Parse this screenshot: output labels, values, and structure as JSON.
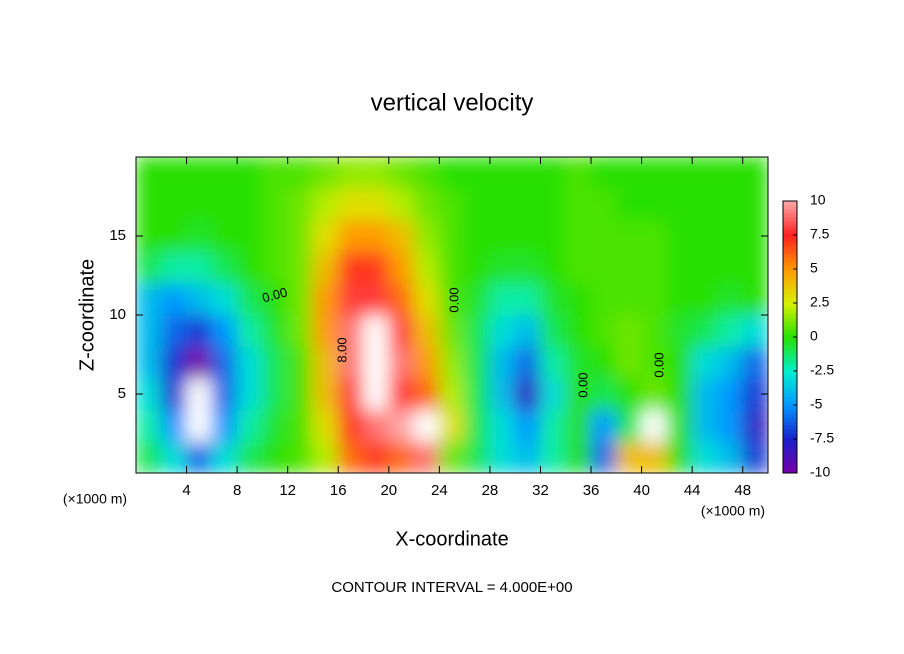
{
  "chart_data": {
    "type": "contour",
    "title": "vertical velocity",
    "xlabel": "X-coordinate",
    "ylabel": "Z-coordinate",
    "x_unit": "(×1000 m)",
    "y_unit": "(×1000 m)",
    "note": "CONTOUR INTERVAL = 4.000E+00",
    "annotations": [
      "0.00",
      "0.00",
      "8.00",
      "0.00",
      "0.00"
    ],
    "xlim": [
      0,
      50
    ],
    "xticks": [
      4,
      8,
      12,
      16,
      20,
      24,
      28,
      32,
      36,
      40,
      44,
      48
    ],
    "ylim": [
      0,
      20
    ],
    "yticks": [
      5,
      10,
      15
    ],
    "colorbar_lim": [
      -10,
      10
    ],
    "colorbar_ticks": [
      10,
      7.5,
      5,
      2.5,
      0,
      -2.5,
      -5,
      -7.5,
      -10
    ],
    "colors": [
      "#ffa8a8",
      "#ff2020",
      "#ff9a00",
      "#d8f000",
      "#28e000",
      "#00f0d0",
      "#0098ff",
      "#1a20c8",
      "#7800a8"
    ],
    "over_color": "#ffffff",
    "under_color": "#ffffff",
    "x": [
      1,
      3,
      5,
      7,
      9,
      11,
      13,
      15,
      17,
      19,
      21,
      23,
      25,
      27,
      29,
      31,
      33,
      35,
      37,
      39,
      41,
      43,
      45,
      47,
      49
    ],
    "y": [
      1,
      3,
      5,
      7,
      9,
      11,
      13,
      15,
      17,
      19
    ],
    "z": [
      [
        -1,
        -3,
        -6,
        -3,
        -1,
        0,
        0.5,
        2,
        6,
        7,
        6,
        9,
        1,
        -1,
        -3,
        -4,
        -2,
        0,
        -6,
        4,
        4,
        0,
        -3,
        -4,
        -7
      ],
      [
        -2,
        -5,
        -12,
        -5,
        -2,
        -0.5,
        0.5,
        3,
        7,
        9,
        10,
        11,
        3,
        -1,
        -3,
        -5,
        -2,
        0,
        -5,
        -1,
        11,
        0,
        -4,
        -5,
        -8
      ],
      [
        -3,
        -7,
        -12,
        -6,
        -3,
        -1,
        0.5,
        4,
        8,
        11,
        8,
        6,
        2,
        -1,
        -4,
        -8,
        -3,
        0,
        -1,
        0,
        1,
        0,
        -4,
        -5,
        -7
      ],
      [
        -4,
        -7,
        -10,
        -6,
        -3,
        -1,
        0.5,
        4,
        9,
        12,
        9,
        5,
        1.5,
        -1,
        -4,
        -6,
        -2,
        -0.5,
        0,
        1,
        0.5,
        0,
        -3,
        -4,
        -6
      ],
      [
        -4,
        -6,
        -7,
        -5,
        -2,
        -0.5,
        1,
        5,
        9,
        11,
        8,
        4,
        1,
        -1,
        -3,
        -4,
        -1,
        0,
        0.5,
        1,
        0.5,
        -0.5,
        -1,
        -2,
        -3
      ],
      [
        -4,
        -5,
        -4,
        -3,
        -1,
        0,
        1,
        5,
        8,
        8,
        6,
        3,
        0.5,
        -0.5,
        -2,
        -2,
        -0.5,
        0,
        0.5,
        0.5,
        0.5,
        0,
        0,
        -0.5,
        0
      ],
      [
        -1,
        -2,
        -2,
        -1,
        0,
        0.5,
        1,
        4,
        7,
        7,
        5,
        2,
        0.5,
        0,
        -0.5,
        -0.5,
        0,
        0.5,
        0.5,
        0.5,
        0.5,
        0,
        0,
        0,
        0
      ],
      [
        0,
        0,
        -0.5,
        0,
        0,
        0.5,
        1,
        3,
        5,
        5,
        4,
        1.5,
        0.5,
        0,
        0,
        0,
        0,
        0.5,
        0.5,
        0.5,
        0.5,
        0,
        0,
        0,
        0
      ],
      [
        0,
        0,
        0,
        0,
        0,
        0.5,
        1,
        2,
        3,
        3,
        2,
        1,
        0.5,
        0,
        0,
        0,
        0,
        0.5,
        0.5,
        0,
        0,
        0,
        0,
        0,
        0
      ],
      [
        0,
        0,
        0,
        0,
        0,
        0.5,
        0.5,
        1,
        1.5,
        1.5,
        1,
        0.5,
        0,
        0,
        0,
        0,
        0,
        0.5,
        0,
        0,
        0,
        0,
        0,
        0,
        0
      ]
    ]
  }
}
